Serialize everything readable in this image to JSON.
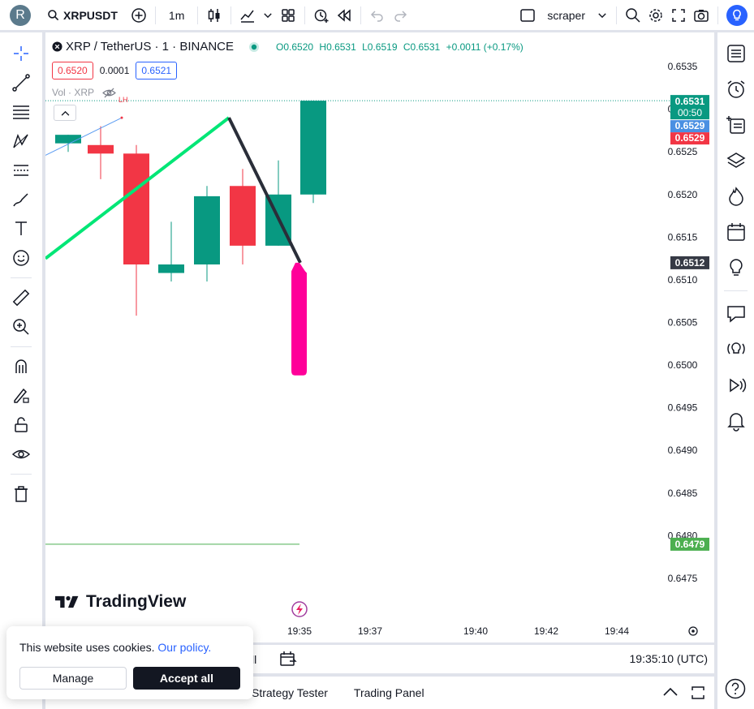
{
  "topbar": {
    "avatar_letter": "R",
    "symbol": "XRPUSDT",
    "interval": "1m",
    "layout_name": "scraper"
  },
  "legend": {
    "title": "XRP / TetherUS · 1 · BINANCE",
    "open": "O0.6520",
    "high": "H0.6531",
    "low": "L0.6519",
    "close": "C0.6531",
    "change": "+0.0011 (+0.17%)",
    "sell_price": "0.6520",
    "spread": "0.0001",
    "buy_price": "0.6521",
    "volume_label": "Vol · XRP"
  },
  "colors": {
    "up": "#089981",
    "down": "#f23645",
    "accent": "#2962ff",
    "magenta": "#ff0099",
    "trend_green": "#00e676"
  },
  "chart_data": {
    "type": "candlestick",
    "ylim": [
      0.6471,
      0.6539
    ],
    "y_ticks": [
      "0.6535",
      "0.6530",
      "0.6525",
      "0.6520",
      "0.6515",
      "0.6510",
      "0.6505",
      "0.6500",
      "0.6495",
      "0.6490",
      "0.6485",
      "0.6480",
      "0.6475"
    ],
    "x_ticks": [
      "19:35",
      "19:37",
      "19:40",
      "19:42",
      "19:44"
    ],
    "candles": [
      {
        "o": 0.6526,
        "h": 0.6527,
        "l": 0.6525,
        "c": 0.6527
      },
      {
        "o": 0.65258,
        "h": 0.6528,
        "l": 0.65218,
        "c": 0.65248
      },
      {
        "o": 0.65248,
        "h": 0.65258,
        "l": 0.65058,
        "c": 0.65118
      },
      {
        "o": 0.65108,
        "h": 0.65168,
        "l": 0.65098,
        "c": 0.65118
      },
      {
        "o": 0.65118,
        "h": 0.6521,
        "l": 0.65098,
        "c": 0.65198
      },
      {
        "o": 0.6521,
        "h": 0.6523,
        "l": 0.65118,
        "c": 0.6514
      },
      {
        "o": 0.6514,
        "h": 0.6524,
        "l": 0.6514,
        "c": 0.652
      },
      {
        "o": 0.652,
        "h": 0.6531,
        "l": 0.6519,
        "c": 0.6531
      }
    ],
    "price_labels": [
      {
        "text": "0.6531",
        "sub": "00:50",
        "color": "#089981"
      },
      {
        "text": "0.6529",
        "color": "#4a90e2"
      },
      {
        "text": "0.6529",
        "color": "#f23645"
      },
      {
        "text": "0.6512",
        "color": "#363a45"
      },
      {
        "text": "0.6479",
        "color": "#4caf50"
      }
    ],
    "annotations": [
      {
        "text": "LH"
      }
    ]
  },
  "bottom": {
    "time_utc": "19:35:10 (UTC)",
    "partial_label": "ll",
    "tab_strategy": "Strategy Tester",
    "tab_trading": "Trading Panel"
  },
  "cookie": {
    "text": "This website uses cookies.",
    "link": "Our policy.",
    "manage": "Manage",
    "accept": "Accept all"
  },
  "logo_text": "TradingView"
}
